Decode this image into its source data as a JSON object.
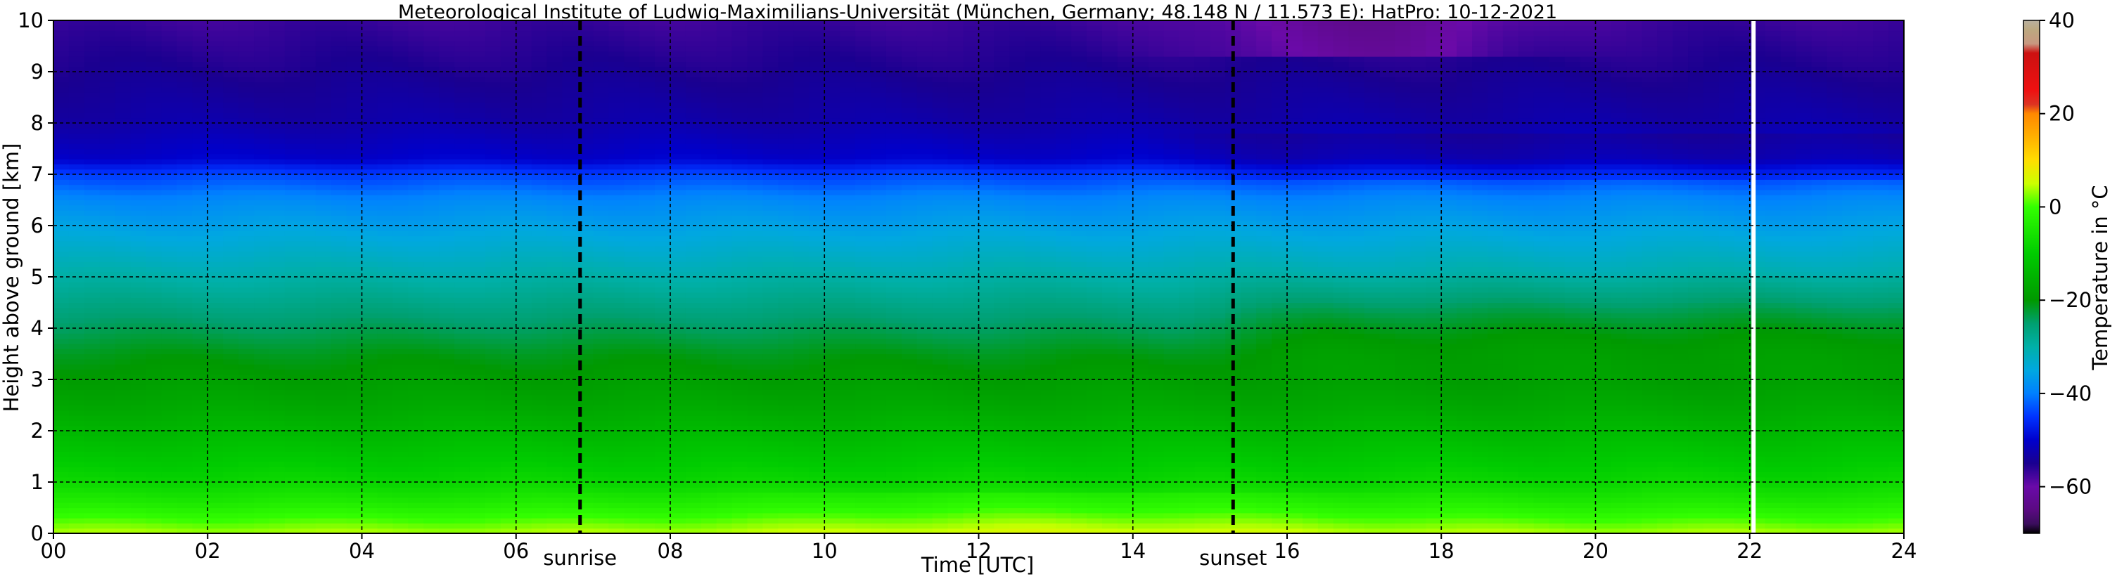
{
  "chart_data": {
    "type": "heatmap",
    "title": "Meteorological Institute of Ludwig-Maximilians-Universität (München, Germany; 48.148 N / 11.573 E):    HatPro: 10-12-2021",
    "xlabel": "Time [UTC]",
    "ylabel": "Height above ground [km]",
    "xlim": [
      0,
      24
    ],
    "ylim": [
      0,
      10
    ],
    "x_ticks": [
      "00",
      "02",
      "04",
      "06",
      "08",
      "10",
      "12",
      "14",
      "16",
      "18",
      "20",
      "22",
      "24"
    ],
    "y_ticks": [
      "0",
      "1",
      "2",
      "3",
      "4",
      "5",
      "6",
      "7",
      "8",
      "9",
      "10"
    ],
    "grid": true,
    "colorbar": {
      "label": "Temperature in °C",
      "range": [
        -70,
        40
      ],
      "ticks": [
        "40",
        "20",
        "0",
        "−20",
        "−40",
        "−60"
      ],
      "tick_values": [
        40,
        20,
        0,
        -20,
        -40,
        -60
      ],
      "stops": [
        {
          "value": -70,
          "color": "#000000"
        },
        {
          "value": -68,
          "color": "#3a0d5c"
        },
        {
          "value": -65,
          "color": "#5a0a82"
        },
        {
          "value": -60,
          "color": "#6a0aa8"
        },
        {
          "value": -55,
          "color": "#1a0090"
        },
        {
          "value": -50,
          "color": "#0000cc"
        },
        {
          "value": -45,
          "color": "#0033ff"
        },
        {
          "value": -40,
          "color": "#0080ff"
        },
        {
          "value": -35,
          "color": "#00a8e0"
        },
        {
          "value": -30,
          "color": "#00b0a8"
        },
        {
          "value": -25,
          "color": "#00a070"
        },
        {
          "value": -20,
          "color": "#009900"
        },
        {
          "value": -10,
          "color": "#00cc00"
        },
        {
          "value": 0,
          "color": "#33ff00"
        },
        {
          "value": 5,
          "color": "#ccff00"
        },
        {
          "value": 10,
          "color": "#ffdd00"
        },
        {
          "value": 15,
          "color": "#ffb000"
        },
        {
          "value": 20,
          "color": "#ff8800"
        },
        {
          "value": 22,
          "color": "#dd3322"
        },
        {
          "value": 25,
          "color": "#ee1111"
        },
        {
          "value": 33,
          "color": "#cc1111"
        },
        {
          "value": 35,
          "color": "#c89880"
        },
        {
          "value": 38,
          "color": "#bca880"
        },
        {
          "value": 40,
          "color": "#b8b0a0"
        }
      ]
    },
    "annotations": [
      {
        "text": "sunrise",
        "x": 6.83
      },
      {
        "text": "sunset",
        "x": 15.3
      }
    ],
    "missing_data_at_x": 22.05,
    "temperature_profile": {
      "heights_km": [
        0,
        0.3,
        0.6,
        1.0,
        1.5,
        2.0,
        2.5,
        3.0,
        3.5,
        4.0,
        4.5,
        5.0,
        5.5,
        6.0,
        6.5,
        7.0,
        7.3,
        8.0,
        9.0,
        10.0
      ],
      "temps_c": [
        4,
        0,
        -4,
        -8,
        -11,
        -14,
        -17,
        -19,
        -21,
        -24,
        -27,
        -30,
        -33,
        -36,
        -39,
        -44,
        -50,
        -53,
        -55,
        -57
      ]
    }
  }
}
